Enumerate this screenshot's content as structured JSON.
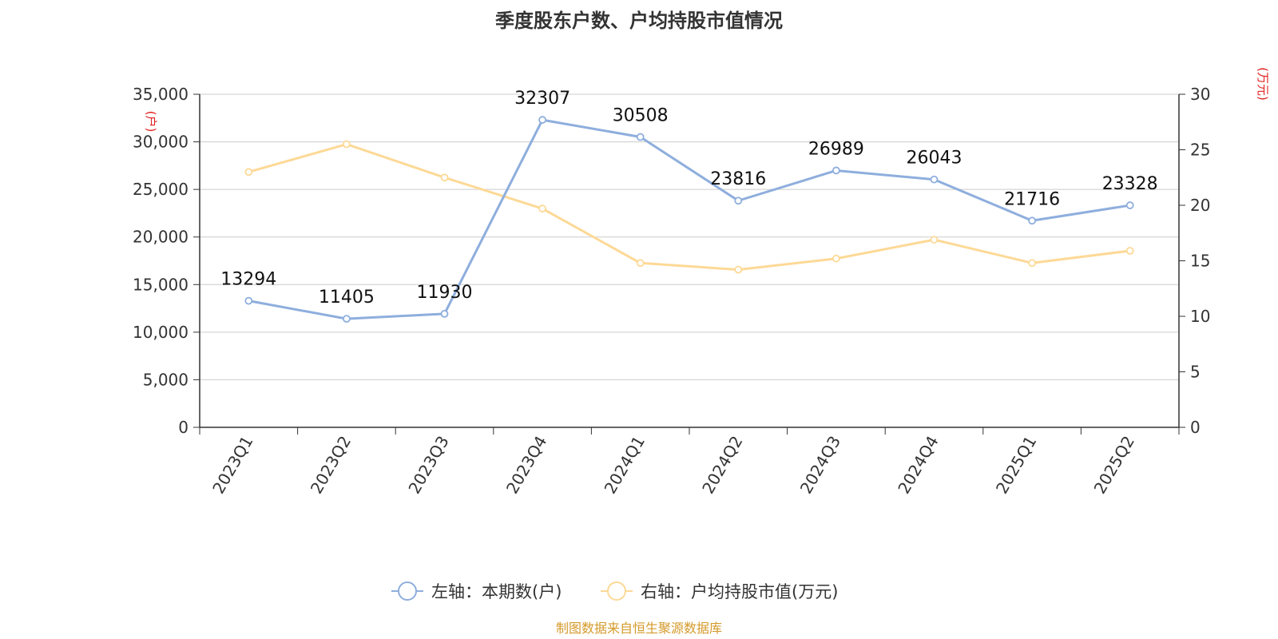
{
  "title": "季度股东户数、户均持股市值情况",
  "source": "制图数据来自恒生聚源数据库",
  "chart_data": {
    "type": "line",
    "categories": [
      "2023Q1",
      "2023Q2",
      "2023Q3",
      "2023Q4",
      "2024Q1",
      "2024Q2",
      "2024Q3",
      "2024Q4",
      "2025Q1",
      "2025Q2"
    ],
    "y_left": {
      "unit": "(户)",
      "ylim": [
        0,
        35000
      ],
      "ticks": [
        "0",
        "5,000",
        "10,000",
        "15,000",
        "20,000",
        "25,000",
        "30,000",
        "35,000"
      ]
    },
    "y_right": {
      "unit": "(万元)",
      "ylim": [
        0,
        30
      ],
      "ticks": [
        "0",
        "5",
        "10",
        "15",
        "20",
        "25",
        "30"
      ]
    },
    "grid": true,
    "legend_position": "bottom",
    "series": [
      {
        "name": "左轴：本期数(户)",
        "axis": "left",
        "color": "#8eaedd",
        "values": [
          13294,
          11405,
          11930,
          32307,
          30508,
          23816,
          26989,
          26043,
          21716,
          23328
        ],
        "labels": [
          "13294",
          "11405",
          "11930",
          "32307",
          "30508",
          "23816",
          "26989",
          "26043",
          "21716",
          "23328"
        ]
      },
      {
        "name": "右轴：户均持股市值(万元)",
        "axis": "right",
        "color": "#fdd996",
        "values": [
          23.0,
          25.5,
          22.5,
          19.7,
          14.8,
          14.2,
          15.2,
          16.9,
          14.8,
          15.9
        ]
      }
    ]
  }
}
